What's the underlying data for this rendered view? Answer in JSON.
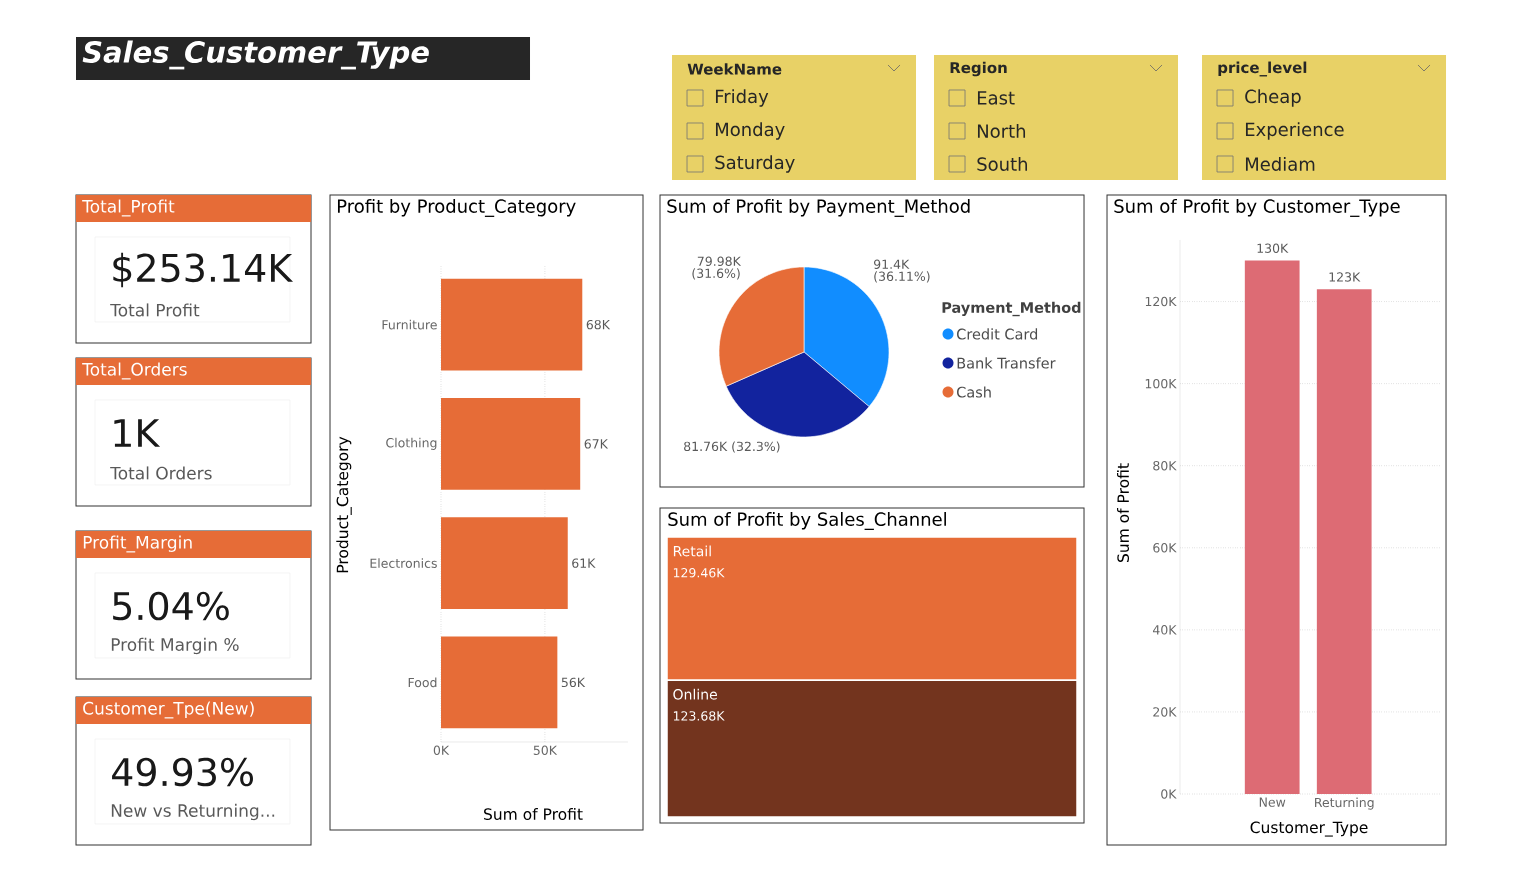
{
  "chart_data": [
    {
      "type": "other",
      "title": "Sales_Customer_Type"
    },
    {
      "type": "other",
      "title": "WeekName",
      "categories": [
        "Friday",
        "Monday",
        "Saturday"
      ]
    },
    {
      "type": "other",
      "title": "Region",
      "categories": [
        "East",
        "North",
        "South"
      ]
    },
    {
      "type": "other",
      "title": "price_level",
      "categories": [
        "Cheap",
        "Experience",
        "Mediam"
      ]
    },
    {
      "type": "other",
      "title": "Total_Profit",
      "annotations": [
        "$253.14K",
        "Total Profit"
      ]
    },
    {
      "type": "other",
      "title": "Total_Orders",
      "annotations": [
        "1K",
        "Total Orders"
      ]
    },
    {
      "type": "other",
      "title": "Profit_Margin",
      "annotations": [
        "5.04%",
        "Profit Margin %"
      ]
    },
    {
      "type": "other",
      "title": "Customer_Tpe(New)",
      "annotations": [
        "49.93%",
        "New vs Returning..."
      ]
    },
    {
      "type": "bar",
      "orientation": "horizontal",
      "title": "Profit by Product_Category",
      "xlabel": "Sum of Profit",
      "ylabel": "Product_Category",
      "categories": [
        "Furniture",
        "Clothing",
        "Electronics",
        "Food"
      ],
      "values": [
        68000,
        67000,
        61000,
        56000
      ],
      "value_labels": [
        "68K",
        "67K",
        "61K",
        "56K"
      ],
      "color": "#e66c37",
      "xlim": [
        0,
        90000
      ],
      "xticks": [
        {
          "value": 0,
          "label": "0K"
        },
        {
          "value": 50000,
          "label": "50K"
        }
      ],
      "grid": "x"
    },
    {
      "type": "pie",
      "title": "Sum of Profit by Payment_Method",
      "legend_title": "Payment_Method",
      "legend": "right",
      "categories": [
        "Credit Card",
        "Bank Transfer",
        "Cash"
      ],
      "values": [
        91400,
        81760,
        79980
      ],
      "value_labels": [
        "91.4K (36.11%)",
        "81.76K (32.3%)",
        "79.98K (31.6%)"
      ],
      "colors": [
        "#118dff",
        "#12239e",
        "#e66c37"
      ]
    },
    {
      "type": "other",
      "title": "Sum of Profit by Sales_Channel",
      "categories": [
        "Retail",
        "Online"
      ],
      "values": [
        129460,
        123680
      ],
      "value_labels": [
        "129.46K",
        "123.68K"
      ],
      "colors": [
        "#e66c37",
        "#73341e"
      ]
    },
    {
      "type": "bar",
      "title": "Sum of Profit by Customer_Type",
      "xlabel": "Customer_Type",
      "ylabel": "Sum of Profit",
      "categories": [
        "New",
        "Returning"
      ],
      "values": [
        130000,
        123000
      ],
      "value_labels": [
        "130K",
        "123K"
      ],
      "color": "#dd6b74",
      "ylim": [
        0,
        135000
      ],
      "yticks": [
        {
          "value": 0,
          "label": "0K"
        },
        {
          "value": 20000,
          "label": "20K"
        },
        {
          "value": 40000,
          "label": "40K"
        },
        {
          "value": 60000,
          "label": "60K"
        },
        {
          "value": 80000,
          "label": "80K"
        },
        {
          "value": 100000,
          "label": "100K"
        },
        {
          "value": 120000,
          "label": "120K"
        }
      ],
      "grid": "y"
    }
  ]
}
